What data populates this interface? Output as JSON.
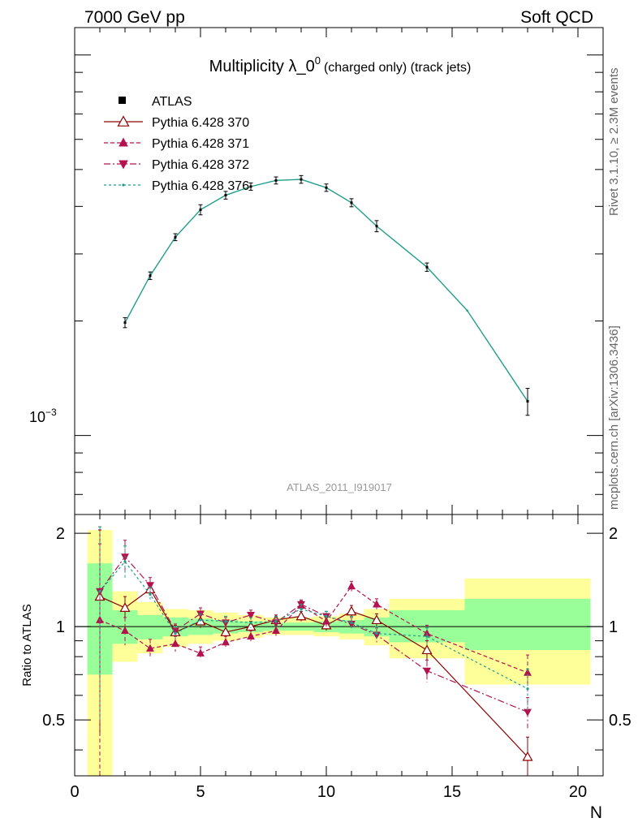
{
  "header": {
    "left": "7000 GeV pp",
    "right": "Soft QCD",
    "side_top": "Rivet 3.1.10, ≥ 2.3M events",
    "side_bottom": "mcplots.cern.ch [arXiv:1306.3436]",
    "watermark": "ATLAS_2011_I919017"
  },
  "chart_data": [
    {
      "type": "line",
      "title_main": "Multiplicity λ_0",
      "title_sup": "0",
      "title_suffix": "(charged only) (track jets)",
      "yscale": "log",
      "xlim": [
        0,
        21
      ],
      "ylim": [
        0.00062,
        0.0118
      ],
      "ytick_label_base": "10",
      "ytick_label_exp": "−3",
      "legend": {
        "placement": "top-left",
        "entries": [
          "ATLAS",
          "Pythia 6.428 370",
          "Pythia 6.428 371",
          "Pythia 6.428 372",
          "Pythia 6.428 376"
        ]
      },
      "data": {
        "x": [
          2,
          3,
          4,
          5,
          6,
          7,
          8,
          9,
          10,
          11,
          12,
          14,
          18
        ],
        "y": [
          0.00198,
          0.00263,
          0.00332,
          0.00392,
          0.00428,
          0.00451,
          0.00468,
          0.00471,
          0.00448,
          0.00409,
          0.00355,
          0.00277,
          0.00123
        ],
        "err": [
          6e-05,
          6e-05,
          7e-05,
          0.00012,
          0.0001,
          0.0001,
          0.0001,
          0.00011,
          0.0001,
          0.0001,
          0.00012,
          7e-05,
          0.0001
        ]
      },
      "mc_x": [
        2,
        3,
        4,
        5,
        6,
        7,
        8,
        9,
        10,
        11,
        12,
        14,
        15.6,
        18
      ],
      "mc_y": [
        0.00198,
        0.00263,
        0.00332,
        0.00392,
        0.00428,
        0.00451,
        0.00468,
        0.00471,
        0.00448,
        0.00409,
        0.00355,
        0.00277,
        0.00213,
        0.00123
      ]
    },
    {
      "type": "line",
      "ylabel": "Ratio to ATLAS",
      "xlabel": "N",
      "xlim": [
        0,
        21
      ],
      "ylim": [
        0.33,
        2.3
      ],
      "xticks": [
        "0",
        "5",
        "10",
        "15",
        "20"
      ],
      "yticks": [
        "0.5",
        "1",
        "2"
      ],
      "bands": [
        {
          "x0": 0.5,
          "x1": 1.5,
          "y_lo": 0.7,
          "y_hi": 1.6,
          "y2_lo": 0.3,
          "y2_hi": 2.05
        },
        {
          "x0": 1.5,
          "x1": 2.5,
          "y_lo": 0.88,
          "y_hi": 1.13,
          "y2_lo": 0.77,
          "y2_hi": 1.3
        },
        {
          "x0": 2.5,
          "x1": 3.5,
          "y_lo": 0.91,
          "y_hi": 1.09,
          "y2_lo": 0.82,
          "y2_hi": 1.2
        },
        {
          "x0": 3.5,
          "x1": 4.5,
          "y_lo": 0.93,
          "y_hi": 1.07,
          "y2_lo": 0.86,
          "y2_hi": 1.14
        },
        {
          "x0": 4.5,
          "x1": 5.5,
          "y_lo": 0.94,
          "y_hi": 1.06,
          "y2_lo": 0.88,
          "y2_hi": 1.13
        },
        {
          "x0": 5.5,
          "x1": 6.5,
          "y_lo": 0.95,
          "y_hi": 1.05,
          "y2_lo": 0.9,
          "y2_hi": 1.11
        },
        {
          "x0": 6.5,
          "x1": 7.5,
          "y_lo": 0.96,
          "y_hi": 1.04,
          "y2_lo": 0.92,
          "y2_hi": 1.09
        },
        {
          "x0": 7.5,
          "x1": 8.5,
          "y_lo": 0.97,
          "y_hi": 1.03,
          "y2_lo": 0.94,
          "y2_hi": 1.07
        },
        {
          "x0": 8.5,
          "x1": 9.5,
          "y_lo": 0.97,
          "y_hi": 1.03,
          "y2_lo": 0.94,
          "y2_hi": 1.07
        },
        {
          "x0": 9.5,
          "x1": 10.5,
          "y_lo": 0.96,
          "y_hi": 1.04,
          "y2_lo": 0.93,
          "y2_hi": 1.08
        },
        {
          "x0": 10.5,
          "x1": 11.5,
          "y_lo": 0.95,
          "y_hi": 1.05,
          "y2_lo": 0.91,
          "y2_hi": 1.1
        },
        {
          "x0": 11.5,
          "x1": 12.5,
          "y_lo": 0.93,
          "y_hi": 1.07,
          "y2_lo": 0.87,
          "y2_hi": 1.14
        },
        {
          "x0": 12.5,
          "x1": 15.5,
          "y_lo": 0.89,
          "y_hi": 1.13,
          "y2_lo": 0.79,
          "y2_hi": 1.23
        },
        {
          "x0": 15.5,
          "x1": 20.5,
          "y_lo": 0.84,
          "y_hi": 1.23,
          "y2_lo": 0.65,
          "y2_hi": 1.43
        }
      ],
      "series": [
        {
          "name": "Pythia 6.428 370",
          "color": "#8b0000",
          "marker": "triangle-open",
          "dash": "",
          "x": [
            1,
            2,
            3,
            4,
            5,
            6,
            7,
            8,
            9,
            10,
            11,
            12,
            14,
            18
          ],
          "y": [
            1.25,
            1.15,
            1.32,
            0.96,
            1.04,
            0.96,
            1.0,
            1.05,
            1.08,
            1.01,
            1.12,
            1.05,
            0.84,
            0.38
          ],
          "err": [
            0.8,
            0.1,
            0.06,
            0.05,
            0.05,
            0.04,
            0.04,
            0.04,
            0.04,
            0.04,
            0.05,
            0.05,
            0.06,
            0.06
          ]
        },
        {
          "name": "Pythia 6.428 371",
          "color": "#b3124f",
          "marker": "triangle-up",
          "dash": "5,3",
          "x": [
            1,
            2,
            3,
            4,
            5,
            6,
            7,
            8,
            9,
            10,
            11,
            12,
            14,
            18
          ],
          "y": [
            1.05,
            0.97,
            0.85,
            0.88,
            0.82,
            0.89,
            0.93,
            0.97,
            1.17,
            1.04,
            1.35,
            1.18,
            0.95,
            0.71
          ],
          "err": [
            0.8,
            0.1,
            0.06,
            0.05,
            0.04,
            0.04,
            0.04,
            0.04,
            0.04,
            0.04,
            0.05,
            0.05,
            0.06,
            0.1
          ]
        },
        {
          "name": "Pythia 6.428 372",
          "color": "#b3124f",
          "marker": "triangle-down",
          "dash": "8,3,2,3",
          "x": [
            1,
            2,
            3,
            4,
            5,
            6,
            7,
            8,
            9,
            10,
            11,
            12,
            14,
            18
          ],
          "y": [
            1.3,
            1.68,
            1.36,
            0.97,
            1.1,
            1.03,
            1.09,
            1.03,
            1.18,
            1.08,
            1.02,
            0.94,
            0.72,
            0.53
          ],
          "err": [
            0.8,
            0.22,
            0.08,
            0.05,
            0.05,
            0.04,
            0.04,
            0.04,
            0.04,
            0.04,
            0.05,
            0.05,
            0.06,
            0.06
          ]
        },
        {
          "name": "Pythia 6.428 376",
          "color": "#1f9e8a",
          "marker": "dot",
          "dash": "3,3",
          "x": [
            1,
            2,
            3,
            4,
            5,
            6,
            7,
            8,
            9,
            10,
            11,
            12,
            14,
            18
          ],
          "y": [
            1.3,
            1.62,
            1.27,
            0.95,
            1.05,
            1.04,
            1.03,
            1.04,
            1.14,
            1.08,
            1.03,
            0.95,
            0.93,
            0.63
          ],
          "err": [
            0.8,
            0.2,
            0.07,
            0.05,
            0.05,
            0.04,
            0.04,
            0.04,
            0.04,
            0.04,
            0.05,
            0.05,
            0.06,
            0.1
          ]
        }
      ]
    }
  ]
}
